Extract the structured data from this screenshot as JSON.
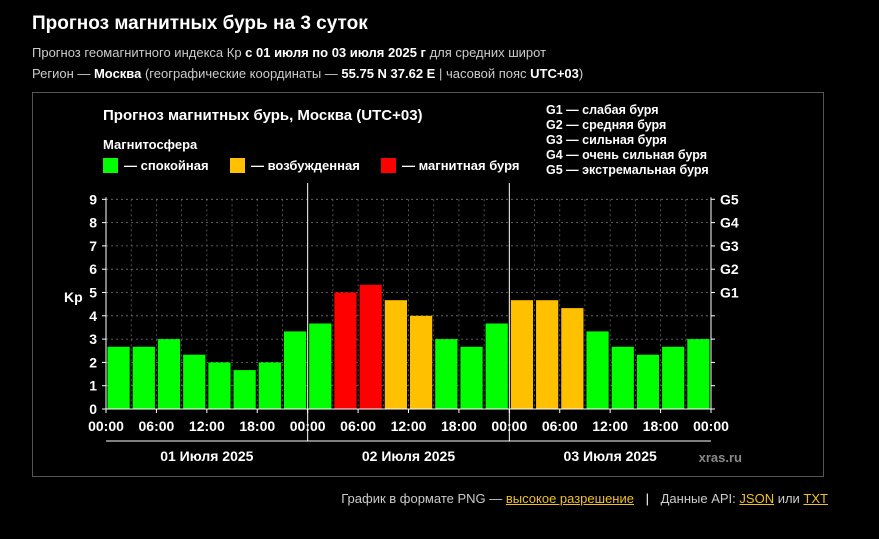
{
  "page": {
    "title": "Прогноз магнитных бурь на 3 суток",
    "subtitle1": {
      "pre": "Прогноз геомагнитного индекса Кр ",
      "range": "с 01 июля по 03 июля 2025 г",
      "post": " для средних широт"
    },
    "subtitle2": {
      "pre": "Регион — ",
      "city": "Москва",
      "mid": " (географические координаты — ",
      "coords": "55.75 N 37.62 E",
      "mid2": " | часовой пояс ",
      "tz": "UTC+03",
      "post": ")"
    }
  },
  "footer": {
    "png_text": "График в формате PNG —",
    "hires_link": "высокое разрешение",
    "divider": "|",
    "api_text": "Данные API:",
    "json_link": "JSON",
    "or_text": "или",
    "txt_link": "TXT"
  },
  "chart_data": {
    "type": "bar",
    "title": "Прогноз магнитных бурь, Москва (UTC+03)",
    "legend_title": "Магнитосфера",
    "legend": [
      {
        "label": "— спокойная",
        "color": "#00ff00"
      },
      {
        "label": "— возбужденная",
        "color": "#ffc000"
      },
      {
        "label": "— магнитная буря",
        "color": "#ff0000"
      }
    ],
    "g_legend": [
      "G1 — слабая буря",
      "G2 — средняя буря",
      "G3 — сильная буря",
      "G4 — очень сильная буря",
      "G5 — экстремальная буря"
    ],
    "ylabel": "Kp",
    "ylim": [
      0,
      9
    ],
    "y_ticks": [
      "0",
      "1",
      "2",
      "3",
      "4",
      "5",
      "6",
      "7",
      "8",
      "9"
    ],
    "g_ticks": [
      {
        "label": "G1",
        "value": 5
      },
      {
        "label": "G2",
        "value": 6
      },
      {
        "label": "G3",
        "value": 7
      },
      {
        "label": "G4",
        "value": 8
      },
      {
        "label": "G5",
        "value": 9
      }
    ],
    "x_tick_labels": [
      "00:00",
      "06:00",
      "12:00",
      "18:00",
      "00:00",
      "06:00",
      "12:00",
      "18:00",
      "00:00",
      "06:00",
      "12:00",
      "18:00",
      "00:00"
    ],
    "days": [
      "01 Июля 2025",
      "02 Июля 2025",
      "03 Июля 2025"
    ],
    "values": [
      2.67,
      2.67,
      3.0,
      2.33,
      2.0,
      1.67,
      2.0,
      3.33,
      3.67,
      5.0,
      5.33,
      4.67,
      4.0,
      3.0,
      2.67,
      3.67,
      4.67,
      4.67,
      4.33,
      3.33,
      2.67,
      2.33,
      2.67,
      3.0
    ],
    "categories": [
      "quiet",
      "quiet",
      "quiet",
      "quiet",
      "quiet",
      "quiet",
      "quiet",
      "quiet",
      "quiet",
      "storm",
      "storm",
      "active",
      "active",
      "quiet",
      "quiet",
      "quiet",
      "active",
      "active",
      "active",
      "quiet",
      "quiet",
      "quiet",
      "quiet",
      "quiet"
    ],
    "watermark": "xras.ru",
    "grid": true
  }
}
